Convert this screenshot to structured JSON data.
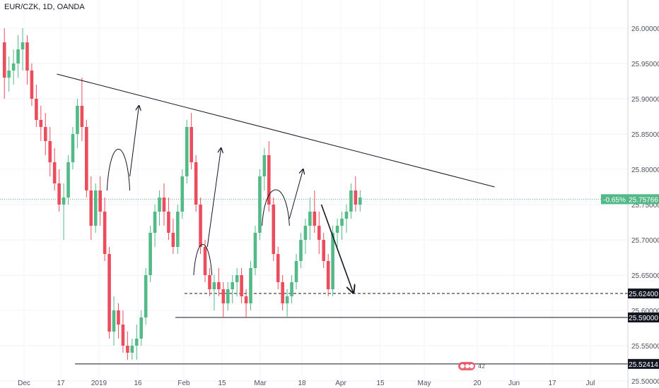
{
  "header": {
    "symbol_line": "EUR/CZK, 1D, OANDA"
  },
  "price_badge": {
    "change": "-0.65%",
    "price": "25.75766"
  },
  "level_labels": [
    "25.62400",
    "25.59000",
    "25.52414"
  ],
  "colors": {
    "up": "#53b987",
    "down": "#eb4d5c",
    "grid": "#f0f3fa",
    "axis_text": "#4c525e",
    "current_price": "#53b987",
    "level_label_bg": "#131722"
  },
  "chart_data": {
    "type": "candlestick",
    "title": "",
    "ylim": [
      25.5,
      26.02
    ],
    "y_ticks": [
      25.5,
      25.55,
      25.6,
      25.65,
      25.7,
      25.75,
      25.8,
      25.85,
      25.9,
      25.95,
      26.0
    ],
    "x_tick_labels": [
      "Dec",
      "17",
      "2019",
      "16",
      "Feb",
      "15",
      "Mar",
      "18",
      "Apr",
      "15",
      "May",
      "20",
      "Jun",
      "17",
      "Jul"
    ],
    "series_ohlc": [
      [
        25.98,
        26.0,
        25.9,
        25.93
      ],
      [
        25.93,
        25.96,
        25.91,
        25.94
      ],
      [
        25.94,
        25.97,
        25.92,
        25.95
      ],
      [
        25.95,
        25.99,
        25.93,
        25.97
      ],
      [
        25.97,
        26.0,
        25.94,
        25.98
      ],
      [
        25.98,
        25.99,
        25.92,
        25.94
      ],
      [
        25.94,
        25.95,
        25.89,
        25.9
      ],
      [
        25.9,
        25.92,
        25.86,
        25.87
      ],
      [
        25.87,
        25.89,
        25.84,
        25.86
      ],
      [
        25.86,
        25.88,
        25.82,
        25.84
      ],
      [
        25.84,
        25.86,
        25.79,
        25.81
      ],
      [
        25.81,
        25.83,
        25.77,
        25.78
      ],
      [
        25.78,
        25.8,
        25.74,
        25.75
      ],
      [
        25.75,
        25.78,
        25.7,
        25.76
      ],
      [
        25.76,
        25.82,
        25.75,
        25.81
      ],
      [
        25.81,
        25.86,
        25.8,
        25.85
      ],
      [
        25.85,
        25.9,
        25.83,
        25.89
      ],
      [
        25.89,
        25.93,
        25.84,
        25.86
      ],
      [
        25.86,
        25.87,
        25.76,
        25.77
      ],
      [
        25.77,
        25.79,
        25.7,
        25.72
      ],
      [
        25.72,
        25.78,
        25.71,
        25.77
      ],
      [
        25.77,
        25.79,
        25.72,
        25.74
      ],
      [
        25.74,
        25.76,
        25.67,
        25.68
      ],
      [
        25.68,
        25.69,
        25.56,
        25.57
      ],
      [
        25.57,
        25.62,
        25.55,
        25.6
      ],
      [
        25.6,
        25.61,
        25.56,
        25.58
      ],
      [
        25.58,
        25.6,
        25.54,
        25.55
      ],
      [
        25.55,
        25.57,
        25.53,
        25.54
      ],
      [
        25.54,
        25.56,
        25.53,
        25.55
      ],
      [
        25.55,
        25.58,
        25.53,
        25.56
      ],
      [
        25.56,
        25.6,
        25.55,
        25.59
      ],
      [
        25.59,
        25.66,
        25.58,
        25.65
      ],
      [
        25.65,
        25.72,
        25.64,
        25.71
      ],
      [
        25.71,
        25.75,
        25.69,
        25.74
      ],
      [
        25.74,
        25.77,
        25.72,
        25.76
      ],
      [
        25.76,
        25.78,
        25.72,
        25.74
      ],
      [
        25.74,
        25.76,
        25.7,
        25.71
      ],
      [
        25.71,
        25.73,
        25.68,
        25.69
      ],
      [
        25.69,
        25.75,
        25.68,
        25.74
      ],
      [
        25.74,
        25.8,
        25.73,
        25.79
      ],
      [
        25.79,
        25.87,
        25.78,
        25.86
      ],
      [
        25.86,
        25.88,
        25.8,
        25.81
      ],
      [
        25.81,
        25.82,
        25.74,
        25.75
      ],
      [
        25.75,
        25.76,
        25.68,
        25.69
      ],
      [
        25.69,
        25.7,
        25.64,
        25.65
      ],
      [
        25.65,
        25.66,
        25.62,
        25.63
      ],
      [
        25.63,
        25.65,
        25.6,
        25.64
      ],
      [
        25.64,
        25.66,
        25.62,
        25.63
      ],
      [
        25.63,
        25.64,
        25.59,
        25.61
      ],
      [
        25.61,
        25.64,
        25.6,
        25.63
      ],
      [
        25.63,
        25.65,
        25.61,
        25.64
      ],
      [
        25.64,
        25.66,
        25.62,
        25.65
      ],
      [
        25.65,
        25.66,
        25.61,
        25.62
      ],
      [
        25.62,
        25.63,
        25.59,
        25.61
      ],
      [
        25.61,
        25.67,
        25.6,
        25.66
      ],
      [
        25.66,
        25.72,
        25.65,
        25.71
      ],
      [
        25.71,
        25.8,
        25.7,
        25.79
      ],
      [
        25.79,
        25.83,
        25.77,
        25.82
      ],
      [
        25.82,
        25.84,
        25.74,
        25.75
      ],
      [
        25.75,
        25.76,
        25.67,
        25.68
      ],
      [
        25.68,
        25.69,
        25.63,
        25.64
      ],
      [
        25.64,
        25.65,
        25.6,
        25.61
      ],
      [
        25.61,
        25.63,
        25.59,
        25.62
      ],
      [
        25.62,
        25.65,
        25.61,
        25.64
      ],
      [
        25.64,
        25.68,
        25.63,
        25.67
      ],
      [
        25.67,
        25.71,
        25.66,
        25.7
      ],
      [
        25.7,
        25.73,
        25.68,
        25.72
      ],
      [
        25.72,
        25.76,
        25.7,
        25.74
      ],
      [
        25.74,
        25.77,
        25.71,
        25.72
      ],
      [
        25.72,
        25.74,
        25.68,
        25.7
      ],
      [
        25.7,
        25.71,
        25.66,
        25.67
      ],
      [
        25.67,
        25.68,
        25.62,
        25.63
      ],
      [
        25.63,
        25.72,
        25.62,
        25.71
      ],
      [
        25.71,
        25.73,
        25.69,
        25.72
      ],
      [
        25.72,
        25.74,
        25.7,
        25.73
      ],
      [
        25.73,
        25.75,
        25.71,
        25.74
      ],
      [
        25.74,
        25.78,
        25.73,
        25.77
      ],
      [
        25.77,
        25.79,
        25.74,
        25.75
      ],
      [
        25.75,
        25.77,
        25.74,
        25.76
      ]
    ],
    "annotations": [
      {
        "type": "trendline",
        "from": [
          12,
          25.935
        ],
        "to": [
          108,
          25.775
        ]
      },
      {
        "type": "level",
        "value": 25.624,
        "style": "dashed",
        "from": 40,
        "to": 106
      },
      {
        "type": "level",
        "value": 25.59,
        "style": "solid",
        "from": 38,
        "to": 106
      },
      {
        "type": "level",
        "value": 25.52414,
        "style": "solid",
        "from": 16,
        "to": 106
      },
      {
        "type": "arc",
        "from": [
          23,
          25.77
        ],
        "peak": [
          26,
          25.83
        ],
        "to": [
          28,
          25.77
        ]
      },
      {
        "type": "arc",
        "from": [
          42,
          25.65
        ],
        "peak": [
          43,
          25.69
        ],
        "to": [
          46,
          25.65
        ]
      },
      {
        "type": "arc",
        "from": [
          57,
          25.72
        ],
        "peak": [
          60,
          25.77
        ],
        "to": [
          63,
          25.72
        ]
      },
      {
        "type": "arrow",
        "from": [
          28,
          25.79
        ],
        "to": [
          30,
          25.89
        ]
      },
      {
        "type": "arrow",
        "from": [
          45,
          25.69
        ],
        "to": [
          48,
          25.83
        ]
      },
      {
        "type": "arrow",
        "from": [
          63,
          25.73
        ],
        "to": [
          66,
          25.8
        ]
      },
      {
        "type": "arrow",
        "from": [
          70,
          25.75
        ],
        "to": [
          77,
          25.625
        ]
      }
    ]
  }
}
